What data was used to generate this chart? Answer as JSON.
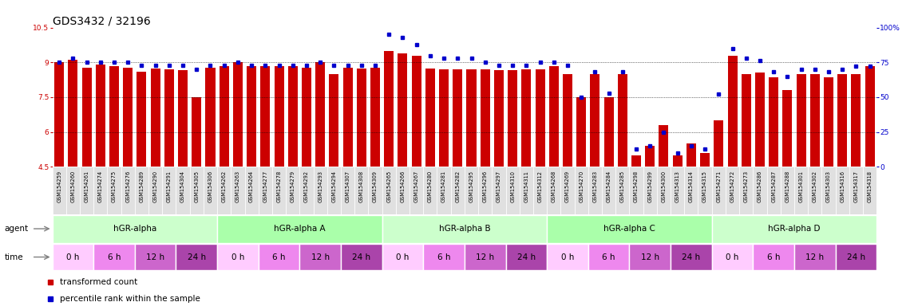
{
  "title": "GDS3432 / 32196",
  "samples": [
    "GSM154259",
    "GSM154260",
    "GSM154261",
    "GSM154274",
    "GSM154275",
    "GSM154276",
    "GSM154289",
    "GSM154290",
    "GSM154291",
    "GSM154304",
    "GSM154305",
    "GSM154306",
    "GSM154262",
    "GSM154263",
    "GSM154264",
    "GSM154277",
    "GSM154278",
    "GSM154279",
    "GSM154292",
    "GSM154293",
    "GSM154294",
    "GSM154307",
    "GSM154308",
    "GSM154309",
    "GSM154265",
    "GSM154266",
    "GSM154267",
    "GSM154280",
    "GSM154281",
    "GSM154282",
    "GSM154295",
    "GSM154296",
    "GSM154297",
    "GSM154310",
    "GSM154311",
    "GSM154312",
    "GSM154268",
    "GSM154269",
    "GSM154270",
    "GSM154283",
    "GSM154284",
    "GSM154285",
    "GSM154298",
    "GSM154299",
    "GSM154300",
    "GSM154313",
    "GSM154314",
    "GSM154315",
    "GSM154271",
    "GSM154272",
    "GSM154273",
    "GSM154286",
    "GSM154287",
    "GSM154288",
    "GSM154301",
    "GSM154302",
    "GSM154303",
    "GSM154316",
    "GSM154317",
    "GSM154318"
  ],
  "bar_values": [
    9.0,
    9.1,
    8.78,
    8.9,
    8.82,
    8.78,
    8.6,
    8.75,
    8.7,
    8.65,
    7.5,
    8.78,
    8.82,
    9.0,
    8.82,
    8.82,
    8.82,
    8.82,
    8.78,
    9.0,
    8.5,
    8.78,
    8.72,
    8.78,
    9.5,
    9.4,
    9.3,
    8.75,
    8.7,
    8.7,
    8.7,
    8.7,
    8.65,
    8.65,
    8.7,
    8.7,
    8.82,
    8.5,
    7.5,
    8.5,
    7.5,
    8.5,
    5.0,
    5.4,
    6.3,
    5.0,
    5.5,
    5.1,
    6.5,
    9.3,
    8.5,
    8.55,
    8.35,
    7.8,
    8.5,
    8.5,
    8.35,
    8.5,
    8.5,
    8.82
  ],
  "percentile_values": [
    75,
    78,
    75,
    75,
    75,
    75,
    73,
    73,
    73,
    73,
    70,
    73,
    73,
    75,
    73,
    73,
    73,
    73,
    73,
    75,
    73,
    73,
    73,
    73,
    95,
    93,
    88,
    80,
    78,
    78,
    78,
    75,
    73,
    73,
    73,
    75,
    75,
    73,
    50,
    68,
    53,
    68,
    13,
    15,
    25,
    10,
    15,
    13,
    52,
    85,
    78,
    76,
    68,
    65,
    70,
    70,
    68,
    70,
    72,
    72
  ],
  "agent_groups": [
    {
      "label": "hGR-alpha",
      "start": 0,
      "end": 12,
      "color": "#ccffcc"
    },
    {
      "label": "hGR-alpha A",
      "start": 12,
      "end": 24,
      "color": "#aaffaa"
    },
    {
      "label": "hGR-alpha B",
      "start": 24,
      "end": 36,
      "color": "#ccffcc"
    },
    {
      "label": "hGR-alpha C",
      "start": 36,
      "end": 48,
      "color": "#aaffaa"
    },
    {
      "label": "hGR-alpha D",
      "start": 48,
      "end": 60,
      "color": "#ccffcc"
    }
  ],
  "time_colors_cycle": [
    "#ffccff",
    "#ee88ee",
    "#cc66cc",
    "#aa44aa"
  ],
  "time_labels": [
    "0 h",
    "6 h",
    "12 h",
    "24 h"
  ],
  "ylim": [
    4.5,
    10.5
  ],
  "yticks": [
    4.5,
    6.0,
    7.5,
    9.0,
    10.5
  ],
  "y2ticks": [
    0,
    25,
    50,
    75,
    100
  ],
  "bar_color": "#cc0000",
  "dot_color": "#0000cc",
  "bg_color": "#ffffff",
  "title_fontsize": 10,
  "tick_fontsize": 6.5,
  "sample_fontsize": 4.8
}
